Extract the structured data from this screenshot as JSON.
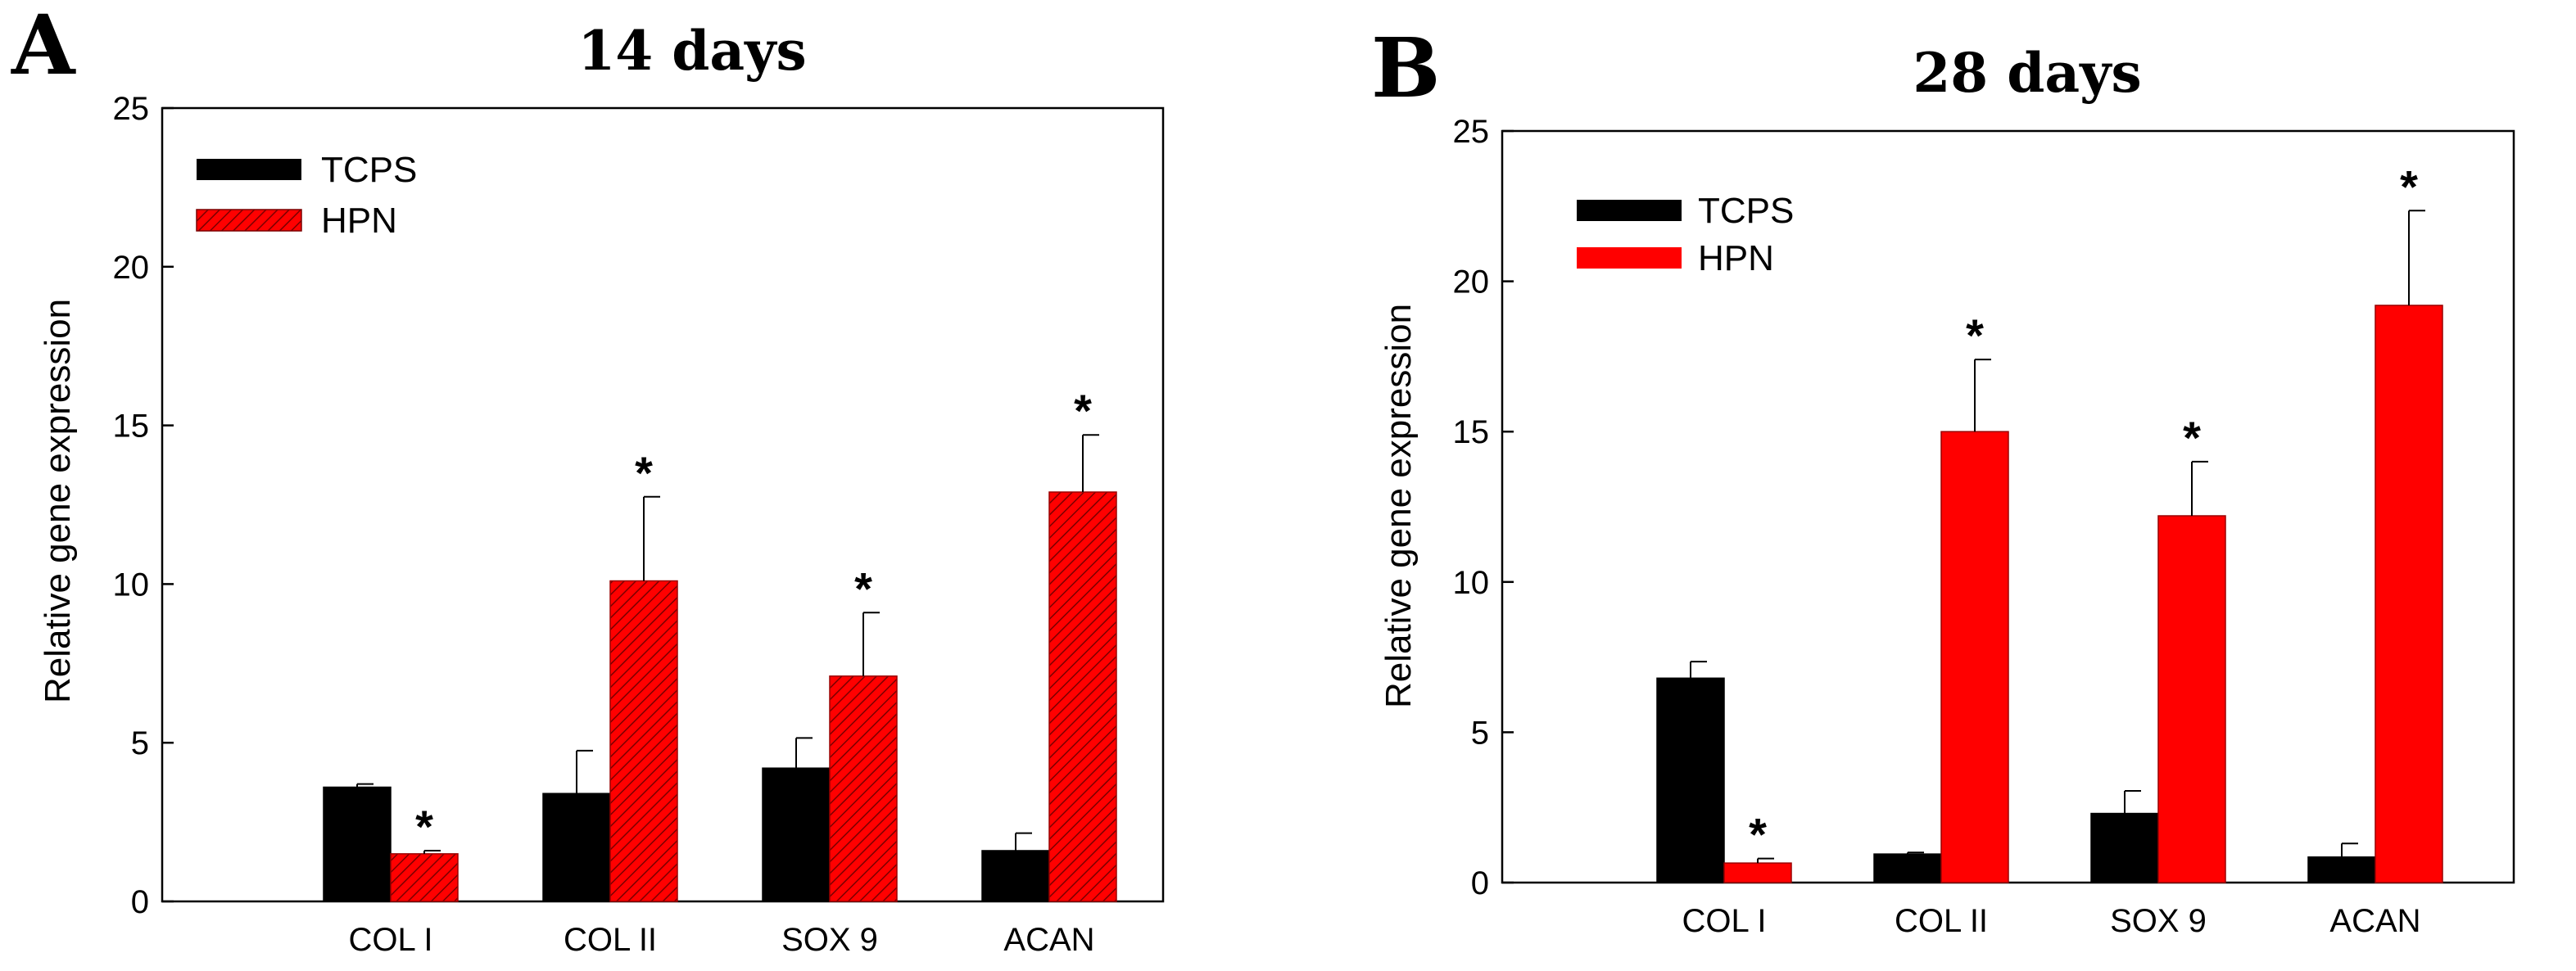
{
  "chart_data": [
    {
      "type": "bar",
      "panel": "A",
      "title": "14 days",
      "xlabel": "",
      "ylabel": "Relative gene expression",
      "ylim": [
        0,
        25
      ],
      "yticks": [
        0,
        5,
        10,
        15,
        20,
        25
      ],
      "categories": [
        "COL I",
        "COL II",
        "SOX 9",
        "ACAN"
      ],
      "legend_position": "top-left",
      "series": [
        {
          "name": "TCPS",
          "color": "#000000",
          "pattern": "solid",
          "values": [
            3.6,
            3.4,
            4.2,
            1.6
          ],
          "errors": [
            0.1,
            1.35,
            0.95,
            0.55
          ]
        },
        {
          "name": "HPN",
          "color": "#ff0000",
          "pattern": "hatched",
          "values": [
            1.5,
            10.1,
            7.1,
            12.9
          ],
          "errors": [
            0.1,
            2.65,
            2.0,
            1.8
          ]
        }
      ],
      "significance": [
        {
          "category": "COL I",
          "series": "HPN",
          "label": "*"
        },
        {
          "category": "COL II",
          "series": "HPN",
          "label": "*"
        },
        {
          "category": "SOX 9",
          "series": "HPN",
          "label": "*"
        },
        {
          "category": "ACAN",
          "series": "HPN",
          "label": "*"
        }
      ]
    },
    {
      "type": "bar",
      "panel": "B",
      "title": "28 days",
      "xlabel": "",
      "ylabel": "Relative gene expression",
      "ylim": [
        0,
        25
      ],
      "yticks": [
        0,
        5,
        10,
        15,
        20,
        25
      ],
      "categories": [
        "COL I",
        "COL II",
        "SOX 9",
        "ACAN"
      ],
      "legend_position": "top-left",
      "series": [
        {
          "name": "TCPS",
          "color": "#000000",
          "pattern": "solid",
          "values": [
            6.8,
            0.95,
            2.3,
            0.85
          ],
          "errors": [
            0.55,
            0.05,
            0.75,
            0.45
          ]
        },
        {
          "name": "HPN",
          "color": "#ff0000",
          "pattern": "solid",
          "values": [
            0.65,
            15.0,
            12.2,
            19.2
          ],
          "errors": [
            0.15,
            2.4,
            1.8,
            3.15
          ]
        }
      ],
      "significance": [
        {
          "category": "COL I",
          "series": "HPN",
          "label": "*"
        },
        {
          "category": "COL II",
          "series": "HPN",
          "label": "*"
        },
        {
          "category": "SOX 9",
          "series": "HPN",
          "label": "*"
        },
        {
          "category": "ACAN",
          "series": "HPN",
          "label": "*"
        }
      ]
    }
  ]
}
